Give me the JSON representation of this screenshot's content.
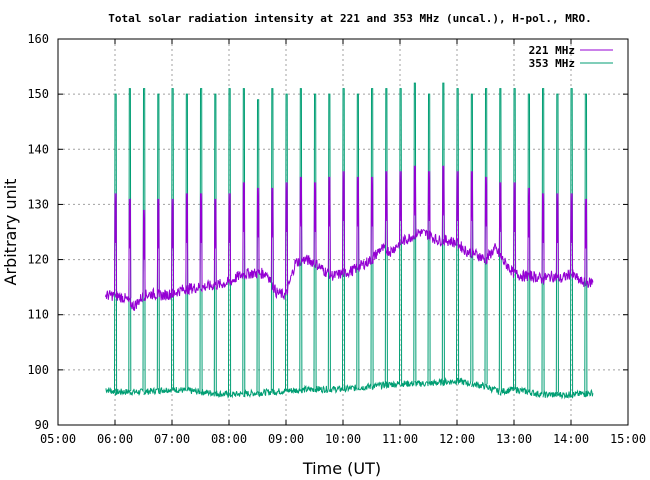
{
  "chart_data": {
    "type": "line",
    "title": "Total solar radiation intensity at 221 and 353 MHz (uncal.), H-pol., MRO.",
    "xlabel": "Time (UT)",
    "ylabel": "Arbitrary unit",
    "xlim": [
      "05:00",
      "15:00"
    ],
    "ylim": [
      90,
      160
    ],
    "x_ticks": [
      "05:00",
      "06:00",
      "07:00",
      "08:00",
      "09:00",
      "10:00",
      "11:00",
      "12:00",
      "13:00",
      "14:00",
      "15:00"
    ],
    "y_ticks": [
      90,
      100,
      110,
      120,
      130,
      140,
      150,
      160
    ],
    "grid": true,
    "legend_position": "top-right",
    "series": [
      {
        "name": "221 MHz",
        "color": "#9400d3",
        "x_start": "05:50",
        "x_end": "14:23",
        "baseline": [
          [
            "05:50",
            113.5
          ],
          [
            "06:00",
            113.5
          ],
          [
            "06:10",
            113.0
          ],
          [
            "06:20",
            111.5
          ],
          [
            "06:30",
            113.5
          ],
          [
            "06:40",
            113.8
          ],
          [
            "06:50",
            113.5
          ],
          [
            "07:00",
            113.8
          ],
          [
            "07:10",
            114.5
          ],
          [
            "07:20",
            114.8
          ],
          [
            "07:30",
            115.0
          ],
          [
            "07:40",
            115.2
          ],
          [
            "07:50",
            115.5
          ],
          [
            "08:00",
            115.8
          ],
          [
            "08:10",
            117.0
          ],
          [
            "08:20",
            117.5
          ],
          [
            "08:30",
            117.5
          ],
          [
            "08:40",
            117.5
          ],
          [
            "08:50",
            114.0
          ],
          [
            "09:00",
            113.5
          ],
          [
            "09:10",
            119.5
          ],
          [
            "09:20",
            120.0
          ],
          [
            "09:30",
            119.5
          ],
          [
            "09:40",
            118.0
          ],
          [
            "09:50",
            117.0
          ],
          [
            "10:00",
            117.5
          ],
          [
            "10:10",
            118.0
          ],
          [
            "10:20",
            119.0
          ],
          [
            "10:30",
            120.0
          ],
          [
            "10:40",
            122.0
          ],
          [
            "10:50",
            121.5
          ],
          [
            "11:00",
            123.0
          ],
          [
            "11:10",
            124.0
          ],
          [
            "11:20",
            125.0
          ],
          [
            "11:30",
            124.5
          ],
          [
            "11:40",
            123.5
          ],
          [
            "11:50",
            123.5
          ],
          [
            "12:00",
            123.0
          ],
          [
            "12:10",
            121.5
          ],
          [
            "12:20",
            121.0
          ],
          [
            "12:30",
            120.0
          ],
          [
            "12:40",
            122.0
          ],
          [
            "12:50",
            119.5
          ],
          [
            "13:00",
            117.5
          ],
          [
            "13:10",
            117.0
          ],
          [
            "13:20",
            117.0
          ],
          [
            "13:30",
            116.5
          ],
          [
            "13:40",
            117.0
          ],
          [
            "13:50",
            116.5
          ],
          [
            "14:00",
            117.5
          ],
          [
            "14:10",
            116.0
          ],
          [
            "14:20",
            115.8
          ],
          [
            "14:23",
            116.0
          ]
        ]
      },
      {
        "name": "353 MHz",
        "color": "#009e73",
        "x_start": "05:50",
        "x_end": "14:23",
        "baseline": [
          [
            "05:50",
            96.5
          ],
          [
            "06:00",
            96.0
          ],
          [
            "06:30",
            96.0
          ],
          [
            "07:00",
            96.5
          ],
          [
            "07:30",
            96.0
          ],
          [
            "08:00",
            95.5
          ],
          [
            "08:30",
            95.8
          ],
          [
            "09:00",
            96.2
          ],
          [
            "09:30",
            96.5
          ],
          [
            "10:00",
            96.5
          ],
          [
            "10:30",
            97.0
          ],
          [
            "11:00",
            97.5
          ],
          [
            "11:30",
            97.5
          ],
          [
            "12:00",
            98.0
          ],
          [
            "12:30",
            97.0
          ],
          [
            "12:45",
            96.0
          ],
          [
            "13:00",
            96.5
          ],
          [
            "13:30",
            95.5
          ],
          [
            "14:00",
            95.5
          ],
          [
            "14:23",
            95.8
          ]
        ]
      }
    ],
    "calibration_spikes": [
      {
        "time": "06:00",
        "peak_221": 132,
        "peak_353": 150
      },
      {
        "time": "06:15",
        "peak_221": 131,
        "peak_353": 151
      },
      {
        "time": "06:30",
        "peak_221": 129,
        "peak_353": 151
      },
      {
        "time": "06:45",
        "peak_221": 131,
        "peak_353": 150
      },
      {
        "time": "07:00",
        "peak_221": 131,
        "peak_353": 151
      },
      {
        "time": "07:15",
        "peak_221": 132,
        "peak_353": 150
      },
      {
        "time": "07:30",
        "peak_221": 132,
        "peak_353": 151
      },
      {
        "time": "07:45",
        "peak_221": 131,
        "peak_353": 150
      },
      {
        "time": "08:00",
        "peak_221": 132,
        "peak_353": 151
      },
      {
        "time": "08:15",
        "peak_221": 134,
        "peak_353": 151
      },
      {
        "time": "08:30",
        "peak_221": 133,
        "peak_353": 149
      },
      {
        "time": "08:45",
        "peak_221": 133,
        "peak_353": 151
      },
      {
        "time": "09:00",
        "peak_221": 134,
        "peak_353": 150
      },
      {
        "time": "09:15",
        "peak_221": 135,
        "peak_353": 151
      },
      {
        "time": "09:30",
        "peak_221": 134,
        "peak_353": 150
      },
      {
        "time": "09:45",
        "peak_221": 135,
        "peak_353": 150
      },
      {
        "time": "10:00",
        "peak_221": 136,
        "peak_353": 151
      },
      {
        "time": "10:15",
        "peak_221": 135,
        "peak_353": 150
      },
      {
        "time": "10:30",
        "peak_221": 135,
        "peak_353": 151
      },
      {
        "time": "10:45",
        "peak_221": 136,
        "peak_353": 151
      },
      {
        "time": "11:00",
        "peak_221": 136,
        "peak_353": 151
      },
      {
        "time": "11:15",
        "peak_221": 137,
        "peak_353": 152
      },
      {
        "time": "11:30",
        "peak_221": 136,
        "peak_353": 150
      },
      {
        "time": "11:45",
        "peak_221": 137,
        "peak_353": 152
      },
      {
        "time": "12:00",
        "peak_221": 136,
        "peak_353": 151
      },
      {
        "time": "12:15",
        "peak_221": 136,
        "peak_353": 150
      },
      {
        "time": "12:30",
        "peak_221": 135,
        "peak_353": 151
      },
      {
        "time": "12:45",
        "peak_221": 134,
        "peak_353": 151
      },
      {
        "time": "13:00",
        "peak_221": 134,
        "peak_353": 151
      },
      {
        "time": "13:15",
        "peak_221": 133,
        "peak_353": 150
      },
      {
        "time": "13:30",
        "peak_221": 132,
        "peak_353": 151
      },
      {
        "time": "13:45",
        "peak_221": 132,
        "peak_353": 150
      },
      {
        "time": "14:00",
        "peak_221": 132,
        "peak_353": 151
      },
      {
        "time": "14:15",
        "peak_221": 131,
        "peak_353": 150
      }
    ]
  }
}
